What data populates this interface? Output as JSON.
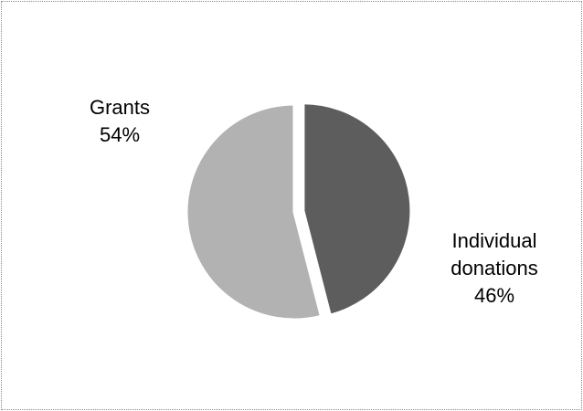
{
  "chart_data": {
    "type": "pie",
    "title": "",
    "slices": [
      {
        "name": "Individual donations",
        "name_lines": [
          "Individual",
          "donations"
        ],
        "value": 46,
        "label": "46%",
        "color": "#5d5d5d",
        "exploded": true
      },
      {
        "name": "Grants",
        "name_lines": [
          "Grants"
        ],
        "value": 54,
        "label": "54%",
        "color": "#b2b2b2",
        "exploded": false
      }
    ],
    "start_angle": "12 o'clock, clockwise",
    "legend": "none (labels beside slices)"
  }
}
